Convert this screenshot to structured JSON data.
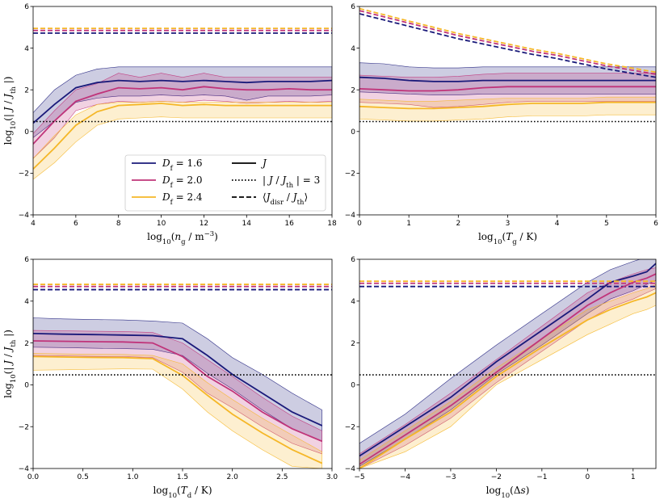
{
  "figure": {
    "colors": {
      "Df16": "#1a1a7a",
      "Df20": "#c0347a",
      "Df24": "#f5b728"
    },
    "legend": {
      "entries": [
        {
          "key": "Df16",
          "label": "D_f = 1.6",
          "style": "solid"
        },
        {
          "key": "Df20",
          "label": "D_f = 2.0",
          "style": "solid"
        },
        {
          "key": "Df24",
          "label": "D_f = 2.4",
          "style": "solid"
        },
        {
          "key": "J",
          "label": "J",
          "style": "solid"
        },
        {
          "key": "thr",
          "label": "| J / J_th | = 3",
          "style": "dotted"
        },
        {
          "key": "disr",
          "label": "⟨J_disr / J_th⟩",
          "style": "dashed"
        }
      ],
      "placement": "inside bottom-center of panel 1"
    }
  },
  "chart_data": [
    {
      "type": "line",
      "xlabel": "log10(n_g / m^-3)",
      "ylabel": "log10(| J / J_th |)",
      "xlim": [
        4,
        18
      ],
      "ylim": [
        -4,
        6
      ],
      "xticks": [
        4,
        6,
        8,
        10,
        12,
        14,
        16,
        18
      ],
      "yticks": [
        -4,
        -2,
        0,
        2,
        4,
        6
      ],
      "threshold": 0.477,
      "x": [
        4,
        5,
        6,
        7,
        8,
        9,
        10,
        11,
        12,
        13,
        14,
        15,
        16,
        17,
        18
      ],
      "series": [
        {
          "name": "D_f = 1.6",
          "key": "Df16",
          "J": [
            0.4,
            1.3,
            2.1,
            2.35,
            2.45,
            2.4,
            2.45,
            2.4,
            2.45,
            2.4,
            2.35,
            2.4,
            2.4,
            2.4,
            2.45
          ],
          "upper": [
            0.9,
            2.0,
            2.7,
            3.0,
            3.1,
            3.1,
            3.1,
            3.1,
            3.1,
            3.1,
            3.1,
            3.1,
            3.1,
            3.1,
            3.1
          ],
          "lower": [
            -0.3,
            0.5,
            1.4,
            1.6,
            1.7,
            1.7,
            1.75,
            1.7,
            1.75,
            1.7,
            1.5,
            1.7,
            1.7,
            1.7,
            1.75
          ],
          "disr": 4.72
        },
        {
          "name": "D_f = 2.0",
          "key": "Df20",
          "J": [
            -0.6,
            0.5,
            1.45,
            1.8,
            2.1,
            2.05,
            2.1,
            2.0,
            2.15,
            2.05,
            2.0,
            2.0,
            2.05,
            2.0,
            2.0
          ],
          "upper": [
            -0.1,
            1.0,
            2.0,
            2.3,
            2.8,
            2.6,
            2.8,
            2.6,
            2.8,
            2.6,
            2.6,
            2.6,
            2.6,
            2.6,
            2.6
          ],
          "lower": [
            -1.3,
            -0.3,
            1.0,
            1.3,
            1.45,
            1.4,
            1.45,
            1.4,
            1.5,
            1.45,
            1.35,
            1.4,
            1.45,
            1.4,
            1.45
          ],
          "disr": 4.85
        },
        {
          "name": "D_f = 2.4",
          "key": "Df24",
          "J": [
            -1.8,
            -0.8,
            0.3,
            0.95,
            1.25,
            1.3,
            1.35,
            1.25,
            1.3,
            1.25,
            1.25,
            1.25,
            1.25,
            1.25,
            1.25
          ],
          "upper": [
            -1.3,
            -0.2,
            0.8,
            1.3,
            1.4,
            1.4,
            1.45,
            1.4,
            1.4,
            1.4,
            1.4,
            1.4,
            1.4,
            1.4,
            1.4
          ],
          "lower": [
            -2.3,
            -1.5,
            -0.5,
            0.3,
            0.6,
            0.65,
            0.7,
            0.65,
            0.65,
            0.65,
            0.65,
            0.65,
            0.65,
            0.65,
            0.65
          ],
          "disr": 4.95
        }
      ]
    },
    {
      "type": "line",
      "xlabel": "log10(T_g / K)",
      "ylabel": "",
      "xlim": [
        0,
        6
      ],
      "ylim": [
        -4,
        6
      ],
      "xticks": [
        0,
        1,
        2,
        3,
        4,
        5,
        6
      ],
      "yticks": [
        -4,
        -2,
        0,
        2,
        4,
        6
      ],
      "threshold": 0.477,
      "x": [
        0,
        0.5,
        1,
        1.5,
        2,
        2.5,
        3,
        3.5,
        4,
        4.5,
        5,
        5.5,
        6
      ],
      "series": [
        {
          "name": "D_f = 1.6",
          "key": "Df16",
          "J": [
            2.6,
            2.55,
            2.45,
            2.4,
            2.4,
            2.45,
            2.45,
            2.45,
            2.45,
            2.45,
            2.45,
            2.45,
            2.45
          ],
          "upper": [
            3.3,
            3.25,
            3.1,
            3.05,
            3.05,
            3.1,
            3.1,
            3.1,
            3.1,
            3.1,
            3.1,
            3.1,
            3.1
          ],
          "lower": [
            1.9,
            1.85,
            1.8,
            1.75,
            1.75,
            1.8,
            1.8,
            1.8,
            1.8,
            1.8,
            1.8,
            1.8,
            1.8
          ],
          "disr": [
            5.65,
            5.35,
            5.05,
            4.75,
            4.45,
            4.2,
            3.95,
            3.7,
            3.5,
            3.25,
            3.0,
            2.8,
            2.6
          ]
        },
        {
          "name": "D_f = 2.0",
          "key": "Df20",
          "J": [
            2.05,
            2.0,
            1.95,
            1.95,
            2.0,
            2.1,
            2.15,
            2.15,
            2.15,
            2.15,
            2.15,
            2.15,
            2.15
          ],
          "upper": [
            2.7,
            2.65,
            2.6,
            2.6,
            2.65,
            2.75,
            2.8,
            2.8,
            2.8,
            2.8,
            2.8,
            2.8,
            2.8
          ],
          "lower": [
            1.4,
            1.35,
            1.3,
            1.15,
            1.2,
            1.3,
            1.4,
            1.45,
            1.45,
            1.45,
            1.45,
            1.45,
            1.45
          ],
          "disr": [
            5.8,
            5.5,
            5.2,
            4.9,
            4.6,
            4.35,
            4.1,
            3.85,
            3.65,
            3.4,
            3.15,
            2.95,
            2.75
          ]
        },
        {
          "name": "D_f = 2.4",
          "key": "Df24",
          "J": [
            1.2,
            1.15,
            1.1,
            1.1,
            1.15,
            1.2,
            1.3,
            1.35,
            1.35,
            1.35,
            1.4,
            1.4,
            1.4
          ],
          "upper": [
            1.55,
            1.5,
            1.45,
            1.45,
            1.5,
            1.55,
            1.6,
            1.6,
            1.6,
            1.6,
            1.65,
            1.65,
            1.65
          ],
          "lower": [
            0.6,
            0.55,
            0.5,
            0.5,
            0.55,
            0.6,
            0.7,
            0.75,
            0.75,
            0.75,
            0.8,
            0.8,
            0.8
          ],
          "disr": [
            5.9,
            5.6,
            5.3,
            5.0,
            4.7,
            4.45,
            4.2,
            3.95,
            3.75,
            3.5,
            3.25,
            3.05,
            2.85
          ]
        }
      ]
    },
    {
      "type": "line",
      "xlabel": "log10(T_d / K)",
      "ylabel": "log10(| J / J_th |)",
      "xlim": [
        0,
        3
      ],
      "ylim": [
        -4,
        6
      ],
      "xticks": [
        0,
        0.5,
        1,
        1.5,
        2,
        2.5,
        3
      ],
      "xticklabels": [
        "0.0",
        "0.5",
        "1.0",
        "1.5",
        "2.0",
        "2.5",
        "3.0"
      ],
      "yticks": [
        -4,
        -2,
        0,
        2,
        4,
        6
      ],
      "threshold": 0.477,
      "x": [
        0,
        0.3,
        0.6,
        0.9,
        1.2,
        1.5,
        1.75,
        2.0,
        2.3,
        2.6,
        2.9
      ],
      "series": [
        {
          "name": "D_f = 1.6",
          "key": "Df16",
          "J": [
            2.45,
            2.42,
            2.4,
            2.38,
            2.35,
            2.2,
            1.4,
            0.5,
            -0.4,
            -1.3,
            -1.95
          ],
          "upper": [
            3.2,
            3.15,
            3.12,
            3.1,
            3.05,
            2.95,
            2.2,
            1.3,
            0.5,
            -0.4,
            -1.2
          ],
          "lower": [
            1.8,
            1.78,
            1.75,
            1.73,
            1.7,
            1.4,
            0.55,
            -0.2,
            -1.2,
            -2.1,
            -2.7
          ],
          "disr": 4.55
        },
        {
          "name": "D_f = 2.0",
          "key": "Df20",
          "J": [
            2.1,
            2.08,
            2.06,
            2.05,
            2.0,
            1.35,
            0.4,
            -0.3,
            -1.3,
            -2.1,
            -2.7
          ],
          "upper": [
            2.6,
            2.58,
            2.56,
            2.55,
            2.5,
            2.0,
            1.2,
            0.4,
            -0.6,
            -1.5,
            -2.2
          ],
          "lower": [
            1.4,
            1.38,
            1.36,
            1.35,
            1.3,
            0.6,
            -0.4,
            -1.1,
            -2.0,
            -2.8,
            -3.3
          ],
          "disr": 4.7
        },
        {
          "name": "D_f = 2.4",
          "key": "Df24",
          "J": [
            1.35,
            1.33,
            1.31,
            1.3,
            1.25,
            0.45,
            -0.5,
            -1.4,
            -2.3,
            -3.1,
            -3.75
          ],
          "upper": [
            1.5,
            1.48,
            1.46,
            1.45,
            1.4,
            1.0,
            0.1,
            -0.7,
            -1.6,
            -2.4,
            -3.2
          ],
          "lower": [
            0.7,
            0.72,
            0.74,
            0.76,
            0.75,
            -0.2,
            -1.3,
            -2.2,
            -3.1,
            -3.9,
            -4.0
          ],
          "disr": 4.8
        }
      ]
    },
    {
      "type": "line",
      "xlabel": "log10(Δs)",
      "ylabel": "",
      "xlim": [
        -5,
        1.5
      ],
      "ylim": [
        -4,
        6
      ],
      "xticks": [
        -5,
        -4,
        -3,
        -2,
        -1,
        0,
        1
      ],
      "yticks": [
        -4,
        -2,
        0,
        2,
        4,
        6
      ],
      "threshold": 0.477,
      "x": [
        -5,
        -4,
        -3,
        -2,
        -1,
        0,
        0.5,
        1,
        1.3,
        1.5
      ],
      "series": [
        {
          "name": "D_f = 1.6",
          "key": "Df16",
          "J": [
            -3.4,
            -2.0,
            -0.6,
            1.1,
            2.6,
            4.1,
            4.9,
            5.2,
            5.4,
            5.8
          ],
          "upper": [
            -2.8,
            -1.4,
            0.3,
            1.9,
            3.4,
            4.9,
            5.5,
            5.9,
            6.1,
            6.1
          ],
          "lower": [
            -3.9,
            -2.6,
            -1.2,
            0.5,
            1.9,
            3.4,
            4.1,
            4.5,
            4.8,
            5.0
          ],
          "disr": 4.7
        },
        {
          "name": "D_f = 2.0",
          "key": "Df20",
          "J": [
            -3.8,
            -2.4,
            -1.0,
            0.6,
            2.2,
            3.8,
            4.4,
            4.9,
            5.1,
            5.3
          ],
          "upper": [
            -3.3,
            -1.9,
            -0.4,
            1.2,
            2.8,
            4.4,
            4.9,
            5.3,
            5.5,
            5.6
          ],
          "lower": [
            -4.0,
            -2.9,
            -1.6,
            0.1,
            1.6,
            3.1,
            3.7,
            4.1,
            4.4,
            4.6
          ],
          "disr": 4.85
        },
        {
          "name": "D_f = 2.4",
          "key": "Df24",
          "J": [
            -4.0,
            -2.6,
            -1.3,
            0.4,
            1.8,
            3.1,
            3.6,
            4.0,
            4.2,
            4.4
          ],
          "upper": [
            -3.6,
            -2.2,
            -0.8,
            0.8,
            2.2,
            3.6,
            4.0,
            4.4,
            4.6,
            4.8
          ],
          "lower": [
            -4.0,
            -3.2,
            -2.0,
            0.0,
            1.2,
            2.4,
            2.9,
            3.4,
            3.6,
            3.8
          ],
          "disr": 4.95
        }
      ]
    }
  ]
}
